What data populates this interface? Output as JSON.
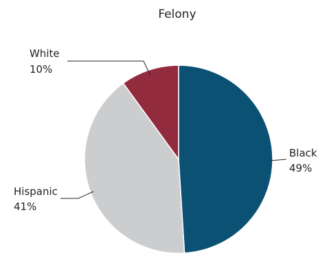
{
  "chart_data": {
    "type": "pie",
    "title": "Felony",
    "slices": [
      {
        "label": "Black",
        "value": 49,
        "display": "49%",
        "color": "#0b5173"
      },
      {
        "label": "Hispanic",
        "value": 41,
        "display": "41%",
        "color": "#cccdcf"
      },
      {
        "label": "White",
        "value": 10,
        "display": "10%",
        "color": "#922b3e"
      }
    ],
    "start_angle_deg": 0,
    "direction": "clockwise"
  }
}
